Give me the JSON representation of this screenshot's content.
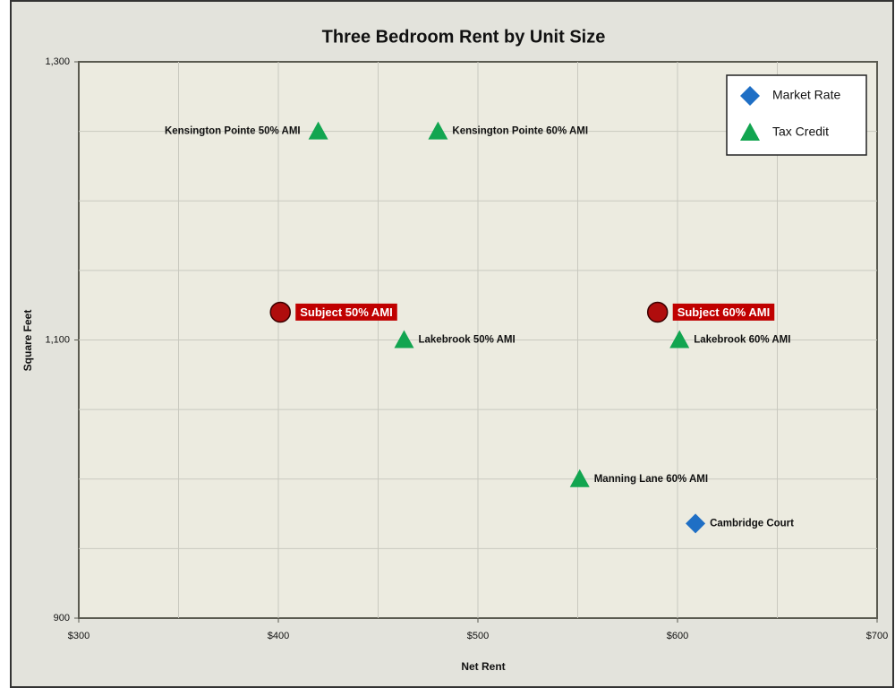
{
  "chart_data": {
    "type": "scatter",
    "title": "Three Bedroom Rent by Unit Size",
    "x_label": "Net Rent",
    "y_label": "Square Feet",
    "xlim": [
      300,
      700
    ],
    "ylim": [
      900,
      1300
    ],
    "xticks": [
      {
        "value": 300,
        "label": "$300"
      },
      {
        "value": 400,
        "label": "$400"
      },
      {
        "value": 500,
        "label": "$500"
      },
      {
        "value": 600,
        "label": "$600"
      },
      {
        "value": 700,
        "label": "$700"
      }
    ],
    "yticks": [
      900,
      {
        "value": 1100,
        "label": "1,100"
      },
      {
        "value": 1300,
        "label": "1,300"
      }
    ],
    "xgrid": [
      350,
      400,
      450,
      500,
      550,
      600,
      650
    ],
    "ygrid": [
      950,
      1000,
      1050,
      1100,
      1150,
      1200,
      1250
    ],
    "grid": true,
    "legend": "upper right",
    "series": [
      {
        "name": "Market Rate",
        "color": "#1f6fc5",
        "marker": "diamond",
        "labels": [
          "Cambridge Court"
        ],
        "x": [
          609
        ],
        "y": [
          968
        ]
      },
      {
        "name": "Tax Credit",
        "color": "#12a550",
        "marker": "triangle",
        "labels": [
          "Kensington Pointe 50% AMI",
          "Kensington Pointe 60% AMI",
          "Lakebrook 50% AMI",
          "Lakebrook 60% AMI",
          "Manning Lane 60% AMI"
        ],
        "x": [
          420,
          480,
          463,
          601,
          551
        ],
        "y": [
          1250,
          1250,
          1100,
          1100,
          1000
        ]
      },
      {
        "color": "#b00d0d",
        "marker": "circle",
        "labels": [
          "Subject 50% AMI",
          "Subject 60% AMI"
        ],
        "x": [
          401,
          590
        ],
        "y": [
          1120,
          1120
        ]
      }
    ]
  }
}
